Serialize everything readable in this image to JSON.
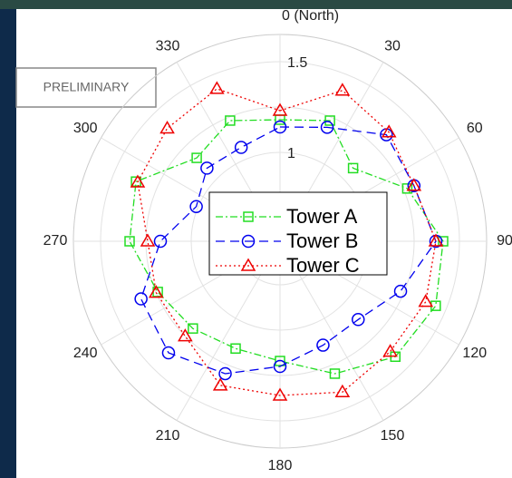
{
  "badge": "PRELIMINARY",
  "chart_data": {
    "type": "polar",
    "theta_direction": "clockwise",
    "theta_zero": "north",
    "theta": [
      0,
      22.5,
      45,
      67.5,
      90,
      112.5,
      135,
      157.5,
      180,
      202.5,
      225,
      247.5,
      270,
      292.5,
      315,
      337.5
    ],
    "thetaticks": [
      {
        "value": 0,
        "label": "0 (North)"
      },
      30,
      60,
      90,
      120,
      150,
      180,
      210,
      240,
      270,
      300,
      330
    ],
    "rlim": [
      0.51,
      1.65
    ],
    "rticks": [
      1,
      1.5
    ],
    "rminor": [
      0.75,
      1.25
    ],
    "grid": true,
    "legend": "center",
    "series": [
      {
        "name": "Tower A",
        "color": "#22dd22",
        "dash": "8 3 2 3",
        "marker": "square",
        "values": [
          1.18,
          1.23,
          1.08,
          1.27,
          1.41,
          1.44,
          1.41,
          1.3,
          1.17,
          1.15,
          1.19,
          1.24,
          1.34,
          1.37,
          1.16,
          1.23
        ]
      },
      {
        "name": "Tower B",
        "color": "#0000ee",
        "dash": "10 6",
        "marker": "circle",
        "values": [
          1.14,
          1.19,
          1.34,
          1.31,
          1.37,
          1.23,
          1.12,
          1.13,
          1.2,
          1.3,
          1.38,
          1.34,
          1.17,
          1.01,
          1.08,
          1.07
        ]
      },
      {
        "name": "Tower C",
        "color": "#ee0000",
        "dash": "2 3",
        "marker": "triangle",
        "values": [
          1.23,
          1.41,
          1.36,
          1.31,
          1.37,
          1.38,
          1.37,
          1.41,
          1.36,
          1.37,
          1.25,
          1.25,
          1.24,
          1.36,
          1.39,
          1.42
        ]
      }
    ]
  }
}
